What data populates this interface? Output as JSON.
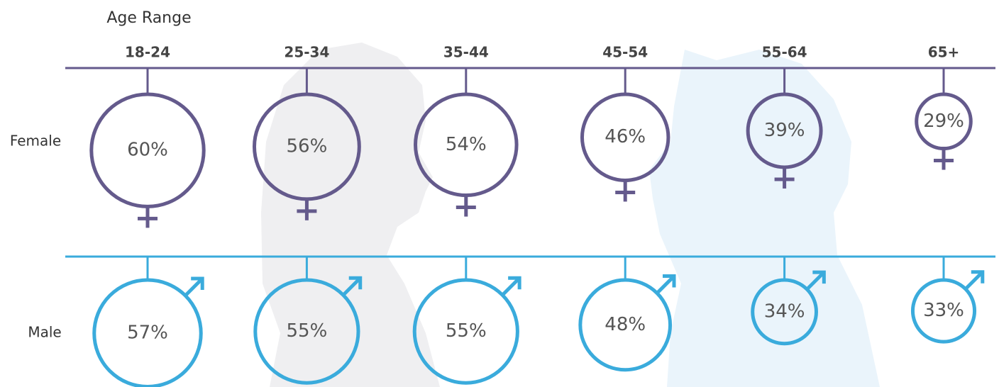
{
  "chart_data": {
    "type": "bubble",
    "x_label": "Age Range",
    "categories": [
      "18-24",
      "25-34",
      "35-44",
      "45-54",
      "55-64",
      "65+"
    ],
    "series": [
      {
        "name": "Female",
        "color": "#645a8c",
        "values": [
          60,
          56,
          54,
          46,
          39,
          29
        ],
        "value_labels": [
          "60%",
          "56%",
          "54%",
          "46%",
          "39%",
          "29%"
        ]
      },
      {
        "name": "Male",
        "color": "#3aabdc",
        "values": [
          57,
          55,
          55,
          48,
          34,
          33
        ],
        "value_labels": [
          "57%",
          "55%",
          "55%",
          "48%",
          "34%",
          "33%"
        ]
      }
    ]
  }
}
